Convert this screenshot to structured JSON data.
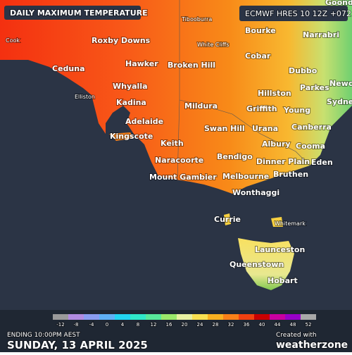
{
  "header": {
    "title": "DAILY MAXIMUM TEMPERATURE",
    "model": "ECMWF HRES 10 12Z +072"
  },
  "places": [
    "Cook",
    "Roxby Downs",
    "Tibooburra",
    "Bourke",
    "Narrabri",
    "Goondiwindi",
    "White Cliffs",
    "Cobar",
    "Ceduna",
    "Hawker",
    "Broken Hill",
    "Dubbo",
    "Newcastle",
    "Elliston",
    "Whyalla",
    "Hillston",
    "Parkes",
    "Sydney",
    "Kadina",
    "Mildura",
    "Griffith",
    "Young",
    "Adelaide",
    "Swan Hill",
    "Urana",
    "Canberra",
    "Kingscote",
    "Keith",
    "Albury",
    "Cooma",
    "Naracoorte",
    "Bendigo",
    "Dinner Plain",
    "Eden",
    "Mount Gambier",
    "Melbourne",
    "Bruthen",
    "Wonthaggi",
    "Currie",
    "Whitemark",
    "Launceston",
    "Queenstown",
    "Hobart"
  ],
  "legend": {
    "ticks": [
      -12,
      -8,
      -4,
      0,
      4,
      8,
      12,
      16,
      20,
      24,
      28,
      32,
      36,
      40,
      44,
      48,
      52
    ],
    "colors": [
      "#9a9a9a",
      "#b18be0",
      "#8a9cf0",
      "#5fb0f5",
      "#22d4f0",
      "#30e8c8",
      "#58e89a",
      "#9be86a",
      "#e8f0a0",
      "#f8e050",
      "#f8b020",
      "#f88018",
      "#f04010",
      "#c80000",
      "#c800a0",
      "#9800c8",
      "#a8a8a8"
    ]
  },
  "footer": {
    "ending": "ENDING 10:00PM AEST",
    "date": "SUNDAY, 13 APRIL 2025",
    "created": "Created with",
    "brand": "weatherzone"
  }
}
